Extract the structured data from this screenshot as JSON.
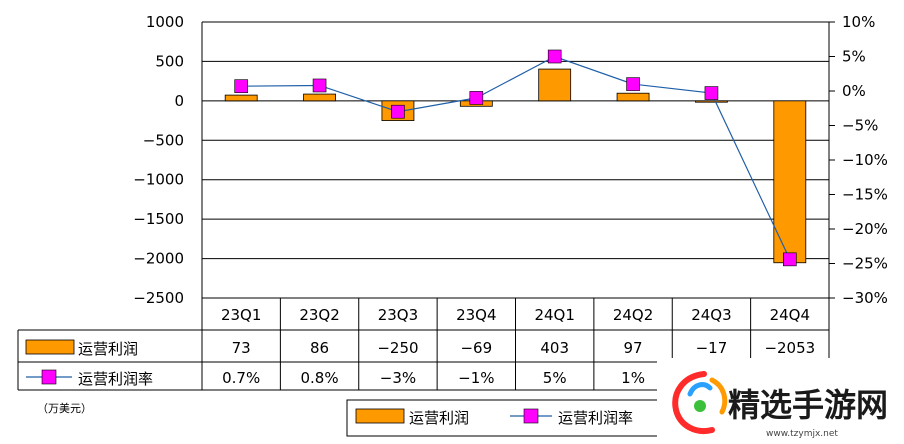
{
  "chart_data": {
    "type": "bar",
    "categories": [
      "23Q1",
      "23Q2",
      "23Q3",
      "23Q4",
      "24Q1",
      "24Q2",
      "24Q3",
      "24Q4"
    ],
    "series": [
      {
        "name": "运营利润",
        "kind": "bar",
        "axis": "left",
        "values": [
          73,
          86,
          -250,
          -69,
          403,
          97,
          -17,
          -2053
        ],
        "display": [
          "73",
          "86",
          "−250",
          "−69",
          "403",
          "97",
          "−17",
          "−2053"
        ],
        "color": "#FF9900"
      },
      {
        "name": "运营利润率",
        "kind": "line",
        "axis": "right",
        "values": [
          0.7,
          0.8,
          -3,
          -1,
          5,
          1,
          -0.3,
          -24.4
        ],
        "display": [
          "0.7%",
          "0.8%",
          "−3%",
          "−1%",
          "5%",
          "1%",
          "",
          ""
        ],
        "color": "#FF00FF",
        "line_color": "#1F5FA8"
      }
    ],
    "left_axis": {
      "ylim": [
        -2500,
        1000
      ],
      "ticks": [
        1000,
        500,
        0,
        -500,
        -1000,
        -1500,
        -2000,
        -2500
      ],
      "tick_labels": [
        "1000",
        "500",
        "0",
        "−500",
        "−1000",
        "−1500",
        "−2000",
        "−2500"
      ]
    },
    "right_axis": {
      "ylim": [
        -30,
        10
      ],
      "ticks": [
        10,
        5,
        0,
        -5,
        -10,
        -15,
        -20,
        -25,
        -30
      ],
      "tick_labels": [
        "10%",
        "5%",
        "0%",
        "−5%",
        "−10%",
        "−15%",
        "−20%",
        "−25%",
        "−30%"
      ]
    },
    "unit_note": "（万美元）",
    "legend": {
      "placement": "bottom",
      "entries": [
        "运营利润",
        "运营利润率"
      ]
    },
    "grid": true,
    "data_table": true
  },
  "watermark": {
    "text": "精选手游网",
    "url": "www.tzymjx.net",
    "colors": [
      "#FF2A2A",
      "#FF9A00",
      "#2AA0FF",
      "#3CC03C"
    ]
  }
}
